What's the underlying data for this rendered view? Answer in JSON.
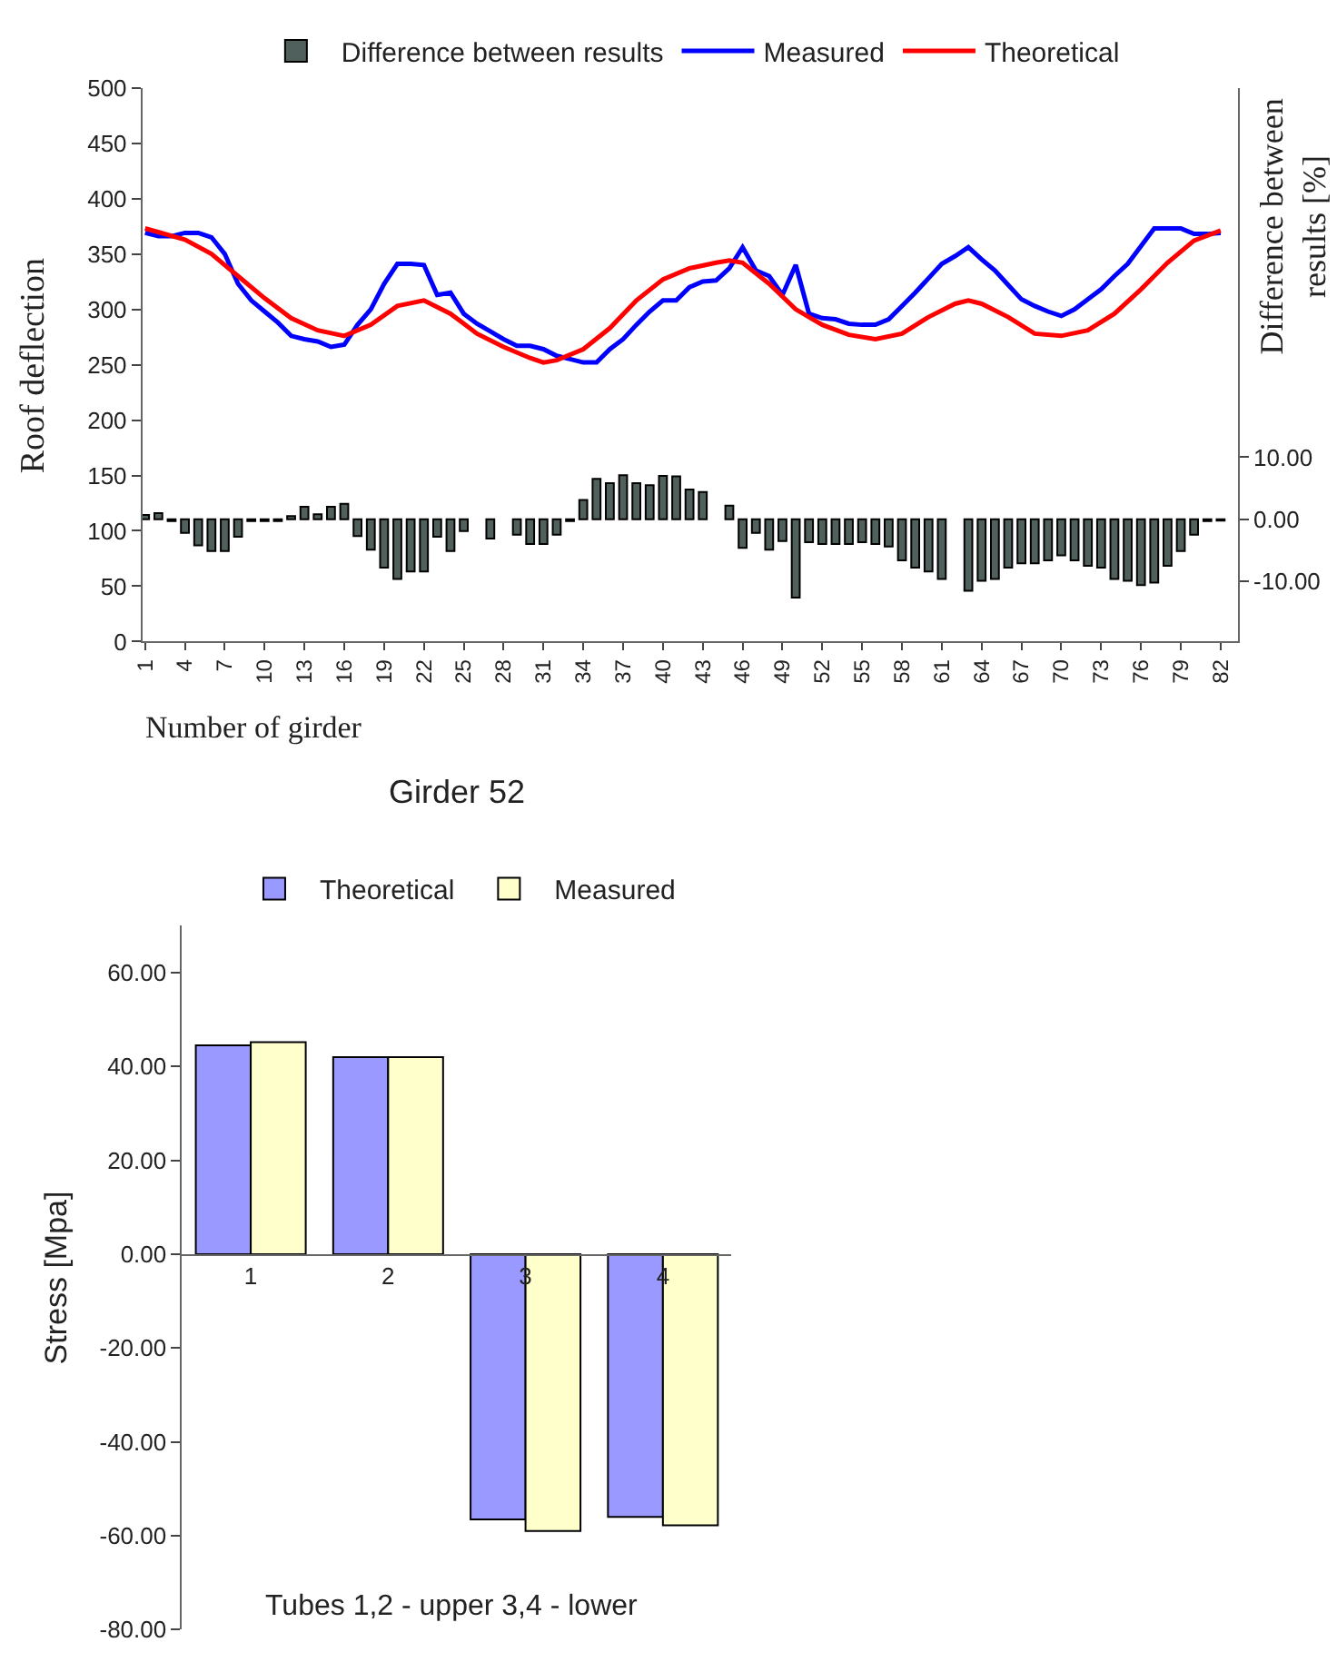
{
  "chart_data": [
    {
      "type": "line",
      "xlabel": "Number of girder",
      "ylabel": "Roof deflection",
      "y2label": "Difference between\nresults [%]",
      "xlim": [
        0.8,
        83.3
      ],
      "xticks": [
        1,
        4,
        7,
        10,
        13,
        16,
        19,
        22,
        25,
        28,
        31,
        34,
        37,
        40,
        43,
        46,
        49,
        52,
        55,
        58,
        61,
        64,
        67,
        70,
        73,
        76,
        79,
        82
      ],
      "ylim": [
        0,
        500
      ],
      "yticks": [
        0,
        50,
        100,
        150,
        200,
        250,
        300,
        350,
        400,
        450,
        500
      ],
      "y2lim": [
        -19.7,
        69.5
      ],
      "y2ticks": [
        {
          "value": -10,
          "label": "-10.00"
        },
        {
          "value": 0,
          "label": "0.00"
        },
        {
          "value": 10,
          "label": "10.00"
        }
      ],
      "legend": "top",
      "series": [
        {
          "name": "Difference between results",
          "type": "bar",
          "axis": "y2",
          "color": "#50605c",
          "x": [
            1,
            2,
            3,
            4,
            5,
            6,
            7,
            8,
            9,
            10,
            11,
            12,
            13,
            14,
            15,
            16,
            17,
            18,
            19,
            20,
            21,
            22,
            23,
            24,
            25,
            26,
            27,
            28,
            29,
            30,
            31,
            32,
            33,
            34,
            35,
            36,
            37,
            38,
            39,
            40,
            41,
            42,
            43,
            44,
            45,
            46,
            47,
            48,
            49,
            50,
            51,
            52,
            53,
            54,
            55,
            56,
            57,
            58,
            59,
            60,
            61,
            62,
            63,
            64,
            65,
            66,
            67,
            68,
            69,
            70,
            71,
            72,
            73,
            74,
            75,
            76,
            77,
            78,
            79,
            80,
            81,
            82
          ],
          "values": [
            0.7,
            1.0,
            -0.3,
            -2.2,
            -4.2,
            -5.1,
            -5.1,
            -2.8,
            -0.3,
            -0.3,
            -0.3,
            0.5,
            2.0,
            0.8,
            2.0,
            2.5,
            -2.7,
            -4.9,
            -7.8,
            -9.6,
            -8.4,
            -8.4,
            -2.8,
            -5.1,
            -1.9,
            null,
            -3.1,
            null,
            -2.5,
            -4.0,
            -4.0,
            -2.5,
            -0.3,
            3.1,
            6.5,
            5.8,
            7.1,
            5.8,
            5.5,
            7.0,
            6.9,
            4.8,
            4.4,
            null,
            2.2,
            -4.6,
            -2.2,
            -4.9,
            -3.5,
            -12.6,
            -3.7,
            -4.0,
            -4.0,
            -4.0,
            -3.7,
            -4.0,
            -4.4,
            -6.6,
            -7.8,
            -8.4,
            -9.6,
            null,
            -11.5,
            -9.9,
            -9.6,
            -7.8,
            -7.1,
            -7.1,
            -6.6,
            -5.8,
            -6.6,
            -7.5,
            -7.8,
            -9.6,
            -9.9,
            -10.6,
            -10.2,
            -7.5,
            -5.1,
            -2.5,
            -0.3,
            -0.2
          ]
        },
        {
          "name": "Measured",
          "type": "line",
          "color": "#0000ff",
          "x": [
            1,
            2,
            3,
            4,
            5,
            6,
            7,
            8,
            9,
            10,
            11,
            12,
            13,
            14,
            15,
            16,
            17,
            18,
            19,
            20,
            21,
            22,
            23,
            24,
            25,
            26,
            27,
            28,
            29,
            30,
            31,
            32,
            33,
            34,
            35,
            36,
            37,
            38,
            39,
            40,
            41,
            42,
            43,
            44,
            45,
            46,
            47,
            48,
            49,
            50,
            51,
            52,
            53,
            54,
            55,
            56,
            57,
            58,
            59,
            60,
            61,
            62,
            63,
            64,
            65,
            66,
            67,
            68,
            69,
            70,
            71,
            72,
            73,
            74,
            75,
            76,
            77,
            78,
            79,
            80,
            81,
            82
          ],
          "values": [
            369,
            366,
            366,
            369,
            369,
            365,
            350,
            323,
            308,
            298,
            288,
            276,
            273,
            271,
            266,
            268,
            286,
            300,
            323,
            341,
            341,
            340,
            313,
            315,
            296,
            287,
            280,
            273,
            267,
            267,
            264,
            258,
            255,
            252,
            252,
            264,
            273,
            286,
            298,
            308,
            308,
            320,
            325,
            326,
            337,
            356,
            335,
            330,
            313,
            340,
            296,
            292,
            291,
            287,
            286,
            286,
            291,
            303,
            315,
            328,
            341,
            348,
            356,
            345,
            335,
            322,
            309,
            303,
            298,
            294,
            300,
            309,
            318,
            330,
            341,
            357,
            373,
            373,
            373,
            368,
            368,
            369
          ]
        },
        {
          "name": "Theoretical",
          "type": "line",
          "color": "#ff0000",
          "x": [
            1,
            4,
            6,
            8,
            10,
            12,
            14,
            16,
            18,
            20,
            22,
            24,
            26,
            28,
            30,
            31,
            32,
            34,
            36,
            38,
            40,
            42,
            44,
            45,
            46,
            48,
            50,
            52,
            54,
            56,
            58,
            60,
            62,
            63,
            64,
            66,
            68,
            70,
            72,
            74,
            76,
            78,
            80,
            82
          ],
          "values": [
            373,
            363,
            350,
            330,
            310,
            292,
            281,
            276,
            286,
            303,
            308,
            296,
            278,
            266,
            256,
            252,
            254,
            264,
            283,
            308,
            327,
            337,
            342,
            344,
            342,
            323,
            300,
            286,
            277,
            273,
            278,
            293,
            305,
            308,
            305,
            293,
            278,
            276,
            281,
            296,
            318,
            342,
            362,
            371
          ]
        }
      ]
    },
    {
      "type": "bar",
      "title": "Girder 52",
      "xlabel": "Tubes 1,2 - upper 3,4 - lower",
      "ylabel": "Stress [Mpa]",
      "categories": [
        "1",
        "2",
        "3",
        "4"
      ],
      "ylim": [
        -80,
        70
      ],
      "yticks": [
        {
          "value": -80,
          "label": "-80.00"
        },
        {
          "value": -60,
          "label": "-60.00"
        },
        {
          "value": -40,
          "label": "-40.00"
        },
        {
          "value": -20,
          "label": "-20.00"
        },
        {
          "value": 0,
          "label": "0.00"
        },
        {
          "value": 20,
          "label": "20.00"
        },
        {
          "value": 40,
          "label": "40.00"
        },
        {
          "value": 60,
          "label": "60.00"
        }
      ],
      "legend": "top",
      "series": [
        {
          "name": "Theoretical",
          "color": "#9999ff",
          "values": [
            44.5,
            42.0,
            -56.5,
            -56.0
          ]
        },
        {
          "name": "Measured",
          "color": "#ffffcc",
          "values": [
            45.2,
            42.0,
            -59.0,
            -57.8
          ]
        }
      ]
    }
  ]
}
